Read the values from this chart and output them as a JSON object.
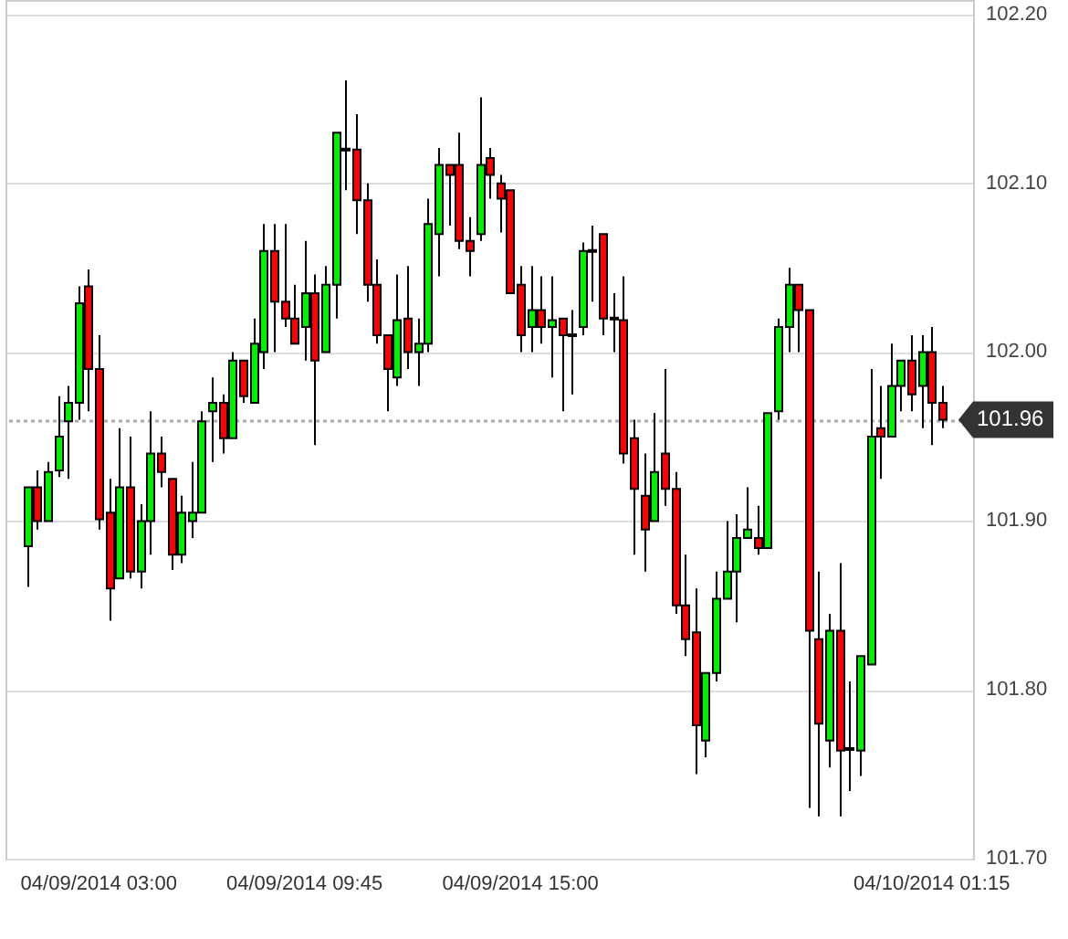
{
  "chart_data": {
    "type": "candlestick",
    "categories": [
      null,
      null,
      null,
      null,
      null,
      null,
      null,
      "04/09/2014 03:00",
      null,
      null,
      null,
      null,
      null,
      null,
      null,
      null,
      null,
      null,
      null,
      null,
      null,
      null,
      null,
      null,
      null,
      null,
      null,
      "04/09/2014 09:45",
      null,
      null,
      null,
      null,
      null,
      null,
      null,
      null,
      null,
      null,
      null,
      null,
      null,
      null,
      null,
      null,
      null,
      null,
      null,
      null,
      "04/09/2014 15:00",
      null,
      null,
      null,
      null,
      null,
      null,
      null,
      null,
      null,
      null,
      null,
      null,
      null,
      null,
      null,
      null,
      null,
      null,
      null,
      null,
      null,
      null,
      null,
      null,
      null,
      null,
      null,
      null,
      null,
      null,
      null,
      null,
      null,
      null,
      null,
      null,
      null,
      null,
      null,
      "04/10/2014 01:15",
      null
    ],
    "ohlc": [
      [
        101.885,
        101.92,
        101.861,
        101.92
      ],
      [
        101.92,
        101.93,
        101.895,
        101.9
      ],
      [
        101.9,
        101.935,
        101.9,
        101.929
      ],
      [
        101.93,
        101.974,
        101.926,
        101.95
      ],
      [
        101.959,
        101.98,
        101.925,
        101.97
      ],
      [
        101.97,
        102.039,
        101.96,
        102.029
      ],
      [
        102.039,
        102.049,
        101.965,
        101.99
      ],
      [
        101.99,
        102.01,
        101.895,
        101.901
      ],
      [
        101.905,
        101.925,
        101.841,
        101.86
      ],
      [
        101.866,
        101.955,
        101.866,
        101.92
      ],
      [
        101.92,
        101.95,
        101.866,
        101.87
      ],
      [
        101.87,
        101.91,
        101.86,
        101.9
      ],
      [
        101.9,
        101.965,
        101.88,
        101.94
      ],
      [
        101.94,
        101.95,
        101.92,
        101.929
      ],
      [
        101.925,
        101.925,
        101.871,
        101.88
      ],
      [
        101.88,
        101.915,
        101.875,
        101.905
      ],
      [
        101.9,
        101.935,
        101.89,
        101.905
      ],
      [
        101.905,
        101.965,
        101.905,
        101.959
      ],
      [
        101.965,
        101.985,
        101.935,
        101.97
      ],
      [
        101.97,
        101.975,
        101.94,
        101.949
      ],
      [
        101.949,
        102.0,
        101.949,
        101.995
      ],
      [
        101.995,
        101.995,
        101.97,
        101.974
      ],
      [
        101.97,
        102.02,
        101.97,
        102.005
      ],
      [
        102.0,
        102.076,
        101.99,
        102.06
      ],
      [
        102.06,
        102.076,
        102.0,
        102.03
      ],
      [
        102.03,
        102.076,
        102.015,
        102.02
      ],
      [
        102.02,
        102.04,
        102.005,
        102.005
      ],
      [
        102.015,
        102.066,
        101.995,
        102.035
      ],
      [
        102.035,
        102.046,
        101.945,
        101.995
      ],
      [
        102.0,
        102.051,
        102.0,
        102.04
      ],
      [
        102.04,
        102.13,
        102.02,
        102.13
      ],
      [
        102.12,
        102.161,
        102.096,
        102.12
      ],
      [
        102.12,
        102.141,
        102.07,
        102.09
      ],
      [
        102.09,
        102.1,
        102.03,
        102.04
      ],
      [
        102.04,
        102.055,
        102.005,
        102.01
      ],
      [
        102.01,
        102.01,
        101.965,
        101.99
      ],
      [
        101.985,
        102.046,
        101.98,
        102.019
      ],
      [
        102.02,
        102.051,
        101.99,
        102.0
      ],
      [
        102.0,
        102.02,
        101.98,
        102.005
      ],
      [
        102.005,
        102.091,
        102.0,
        102.076
      ],
      [
        102.07,
        102.121,
        102.045,
        102.111
      ],
      [
        102.111,
        102.111,
        102.075,
        102.105
      ],
      [
        102.111,
        102.13,
        102.061,
        102.066
      ],
      [
        102.066,
        102.08,
        102.045,
        102.06
      ],
      [
        102.07,
        102.151,
        102.066,
        102.111
      ],
      [
        102.115,
        102.121,
        102.091,
        102.105
      ],
      [
        102.1,
        102.105,
        102.071,
        102.091
      ],
      [
        102.096,
        102.096,
        102.035,
        102.035
      ],
      [
        102.04,
        102.051,
        102.0,
        102.01
      ],
      [
        102.015,
        102.051,
        102.0,
        102.025
      ],
      [
        102.025,
        102.045,
        102.005,
        102.015
      ],
      [
        102.015,
        102.045,
        101.985,
        102.019
      ],
      [
        102.02,
        102.02,
        101.965,
        102.01
      ],
      [
        102.01,
        102.025,
        101.975,
        102.01
      ],
      [
        102.015,
        102.065,
        102.01,
        102.06
      ],
      [
        102.06,
        102.075,
        102.03,
        102.06
      ],
      [
        102.07,
        102.07,
        102.01,
        102.02
      ],
      [
        102.02,
        102.035,
        102.0,
        102.02
      ],
      [
        102.019,
        102.045,
        101.934,
        101.94
      ],
      [
        101.949,
        101.96,
        101.88,
        101.919
      ],
      [
        101.915,
        101.94,
        101.87,
        101.895
      ],
      [
        101.9,
        101.964,
        101.9,
        101.929
      ],
      [
        101.94,
        101.99,
        101.909,
        101.919
      ],
      [
        101.919,
        101.929,
        101.845,
        101.85
      ],
      [
        101.85,
        101.88,
        101.82,
        101.83
      ],
      [
        101.834,
        101.86,
        101.75,
        101.779
      ],
      [
        101.77,
        101.81,
        101.76,
        101.81
      ],
      [
        101.81,
        101.87,
        101.805,
        101.854
      ],
      [
        101.854,
        101.9,
        101.854,
        101.87
      ],
      [
        101.87,
        101.904,
        101.84,
        101.89
      ],
      [
        101.89,
        101.92,
        101.89,
        101.895
      ],
      [
        101.89,
        101.909,
        101.88,
        101.884
      ],
      [
        101.884,
        101.964,
        101.884,
        101.964
      ],
      [
        101.965,
        102.02,
        101.96,
        102.015
      ],
      [
        102.015,
        102.05,
        102.0,
        102.04
      ],
      [
        102.04,
        102.04,
        102.0,
        102.025
      ],
      [
        102.025,
        102.025,
        101.73,
        101.835
      ],
      [
        101.83,
        101.87,
        101.725,
        101.78
      ],
      [
        101.77,
        101.845,
        101.754,
        101.835
      ],
      [
        101.835,
        101.875,
        101.725,
        101.764
      ],
      [
        101.765,
        101.805,
        101.74,
        101.765
      ],
      [
        101.764,
        101.82,
        101.749,
        101.82
      ],
      [
        101.815,
        101.99,
        101.815,
        101.95
      ],
      [
        101.955,
        101.98,
        101.925,
        101.95
      ],
      [
        101.95,
        102.005,
        101.95,
        101.98
      ],
      [
        101.98,
        101.995,
        101.965,
        101.995
      ],
      [
        101.995,
        102.01,
        101.965,
        101.975
      ],
      [
        101.98,
        102.01,
        101.955,
        102.0
      ],
      [
        102.0,
        102.015,
        101.945,
        101.97
      ],
      [
        101.97,
        101.98,
        101.955,
        101.96
      ]
    ],
    "colors": [
      "#00ee00",
      "#ff0000",
      "#00ee00",
      "#00ee00",
      "#00ee00",
      "#00ee00",
      "#ff0000",
      "#ff0000",
      "#ff0000",
      "#00ee00",
      "#ff0000",
      "#00ee00",
      "#00ee00",
      "#ff0000",
      "#ff0000",
      "#00ee00",
      "#00ee00",
      "#00ee00",
      "#00ee00",
      "#ff0000",
      "#00ee00",
      "#ff0000",
      "#00ee00",
      "#00ee00",
      "#ff0000",
      "#ff0000",
      "#ff0000",
      "#00ee00",
      "#ff0000",
      "#00ee00",
      "#00ee00",
      "#00ee00",
      "#ff0000",
      "#ff0000",
      "#ff0000",
      "#ff0000",
      "#00ee00",
      "#ff0000",
      "#00ee00",
      "#00ee00",
      "#00ee00",
      "#ff0000",
      "#ff0000",
      "#ff0000",
      "#00ee00",
      "#ff0000",
      "#ff0000",
      "#ff0000",
      "#ff0000",
      "#00ee00",
      "#ff0000",
      "#00ee00",
      "#ff0000",
      "#00ee00",
      "#00ee00",
      "#00ee00",
      "#ff0000",
      "#00ee00",
      "#ff0000",
      "#ff0000",
      "#ff0000",
      "#00ee00",
      "#ff0000",
      "#ff0000",
      "#ff0000",
      "#ff0000",
      "#00ee00",
      "#00ee00",
      "#00ee00",
      "#00ee00",
      "#00ee00",
      "#ff0000",
      "#00ee00",
      "#00ee00",
      "#00ee00",
      "#ff0000",
      "#ff0000",
      "#ff0000",
      "#00ee00",
      "#ff0000",
      "#00ee00",
      "#00ee00",
      "#00ee00",
      "#ff0000",
      "#00ee00",
      "#00ee00",
      "#ff0000",
      "#00ee00",
      "#ff0000",
      "#ff0000"
    ],
    "ylim": [
      101.7,
      102.2
    ],
    "yticks": [
      {
        "value": 101.7,
        "label": "101.70"
      },
      {
        "value": 101.8,
        "label": "101.80"
      },
      {
        "value": 101.9,
        "label": "101.90"
      },
      {
        "value": 102.0,
        "label": "102.00"
      },
      {
        "value": 102.1,
        "label": "102.10"
      },
      {
        "value": 102.2,
        "label": "102.20"
      }
    ],
    "grid": "y",
    "ref_lines": [
      {
        "axis": "y",
        "value": 101.96,
        "label": "101.96",
        "color": "#aaaaaa",
        "line_style": "dotted"
      }
    ]
  }
}
